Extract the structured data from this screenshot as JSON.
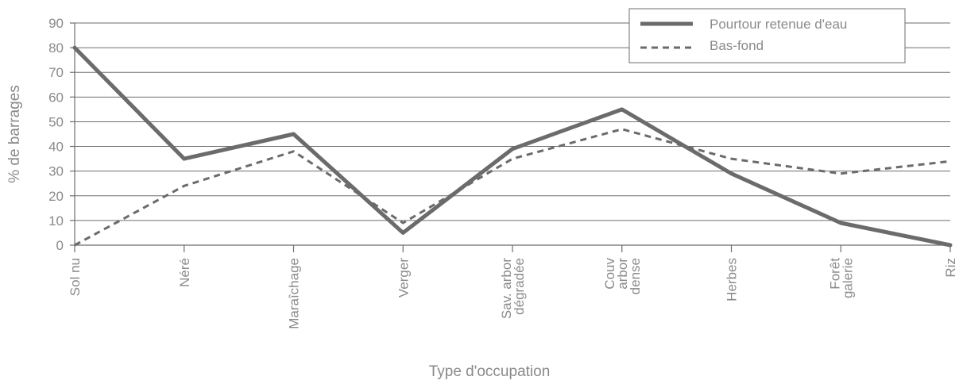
{
  "chart_data": {
    "type": "line",
    "xlabel": "Type d'occupation",
    "ylabel": "% de barrages",
    "ylim": [
      0,
      90
    ],
    "y_ticks": [
      0,
      10,
      20,
      30,
      40,
      50,
      60,
      70,
      80,
      90
    ],
    "grid": true,
    "legend_position": "top-right",
    "categories": [
      [
        "Sol nu"
      ],
      [
        "Néré"
      ],
      [
        "Maraîchage"
      ],
      [
        "Verger"
      ],
      [
        "Sav. arbor",
        "dégradée"
      ],
      [
        "Couv",
        "arbor",
        "dense"
      ],
      [
        "Herbes"
      ],
      [
        "Forêt",
        "galerie"
      ],
      [
        "Riz"
      ]
    ],
    "series": [
      {
        "name": "Pourtour retenue d'eau",
        "values": [
          80,
          35,
          45,
          5,
          39,
          55,
          29,
          9,
          0
        ],
        "style": "solid",
        "color": "#6b6b6b"
      },
      {
        "name": "Bas-fond",
        "values": [
          0,
          24,
          38,
          9,
          35,
          47,
          35,
          29,
          34
        ],
        "style": "dashed",
        "color": "#6b6b6b"
      }
    ]
  }
}
